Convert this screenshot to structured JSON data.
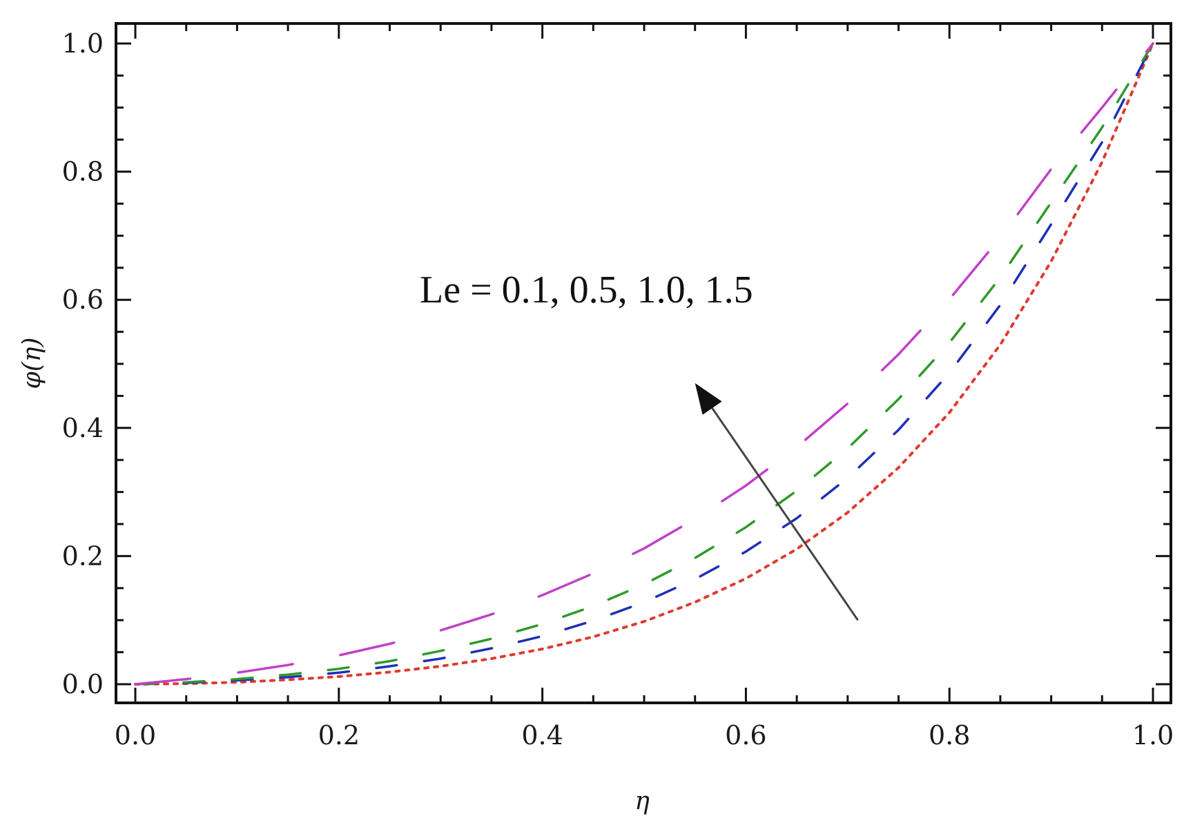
{
  "chart_data": {
    "type": "line",
    "xlabel": "η",
    "ylabel": "φ(η)",
    "xlim": [
      0,
      1
    ],
    "ylim": [
      -0.03,
      1.03
    ],
    "xticks": [
      "0.0",
      "0.2",
      "0.4",
      "0.6",
      "0.8",
      "1.0"
    ],
    "yticks": [
      "0.0",
      "0.2",
      "0.4",
      "0.6",
      "0.8",
      "1.0"
    ],
    "grid": false,
    "legend": "none",
    "annotation": {
      "text": "Le = 0.1, 0.5, 1.0, 1.5",
      "arrow_from": [
        0.71,
        0.1
      ],
      "arrow_to": [
        0.55,
        0.47
      ]
    },
    "series": [
      {
        "color": "#e03a2f",
        "style": "dotted",
        "x": [
          0,
          0.05,
          0.1,
          0.15,
          0.2,
          0.25,
          0.3,
          0.35,
          0.4,
          0.45,
          0.5,
          0.55,
          0.6,
          0.65,
          0.7,
          0.75,
          0.8,
          0.85,
          0.9,
          0.95,
          1.0
        ],
        "y": [
          0,
          0.001,
          0.003,
          0.007,
          0.012,
          0.019,
          0.028,
          0.04,
          0.055,
          0.074,
          0.098,
          0.128,
          0.165,
          0.211,
          0.268,
          0.338,
          0.424,
          0.53,
          0.66,
          0.815,
          1.0
        ]
      },
      {
        "color": "#1f2fb8",
        "style": "dashed",
        "x": [
          0,
          0.05,
          0.1,
          0.15,
          0.2,
          0.25,
          0.3,
          0.35,
          0.4,
          0.45,
          0.5,
          0.55,
          0.6,
          0.65,
          0.7,
          0.75,
          0.8,
          0.85,
          0.9,
          0.95,
          1.0
        ],
        "y": [
          0,
          0.002,
          0.006,
          0.011,
          0.018,
          0.028,
          0.04,
          0.056,
          0.075,
          0.099,
          0.128,
          0.164,
          0.207,
          0.259,
          0.322,
          0.397,
          0.486,
          0.592,
          0.718,
          0.846,
          1.0
        ]
      },
      {
        "color": "#2e9a2a",
        "style": "dashed",
        "x": [
          0,
          0.05,
          0.1,
          0.15,
          0.2,
          0.25,
          0.3,
          0.35,
          0.4,
          0.45,
          0.5,
          0.55,
          0.6,
          0.65,
          0.7,
          0.75,
          0.8,
          0.85,
          0.9,
          0.95,
          1.0
        ],
        "y": [
          0,
          0.003,
          0.008,
          0.015,
          0.024,
          0.036,
          0.052,
          0.071,
          0.094,
          0.122,
          0.156,
          0.197,
          0.245,
          0.302,
          0.368,
          0.445,
          0.533,
          0.635,
          0.752,
          0.869,
          1.0
        ]
      },
      {
        "color": "#c040c8",
        "style": "long-dashed",
        "x": [
          0,
          0.05,
          0.1,
          0.15,
          0.2,
          0.25,
          0.3,
          0.35,
          0.4,
          0.45,
          0.5,
          0.55,
          0.6,
          0.65,
          0.7,
          0.75,
          0.8,
          0.85,
          0.9,
          0.95,
          1.0
        ],
        "y": [
          0,
          0.008,
          0.018,
          0.03,
          0.045,
          0.063,
          0.084,
          0.109,
          0.139,
          0.173,
          0.212,
          0.258,
          0.31,
          0.37,
          0.438,
          0.515,
          0.601,
          0.697,
          0.804,
          0.9,
          1.0
        ]
      }
    ]
  }
}
